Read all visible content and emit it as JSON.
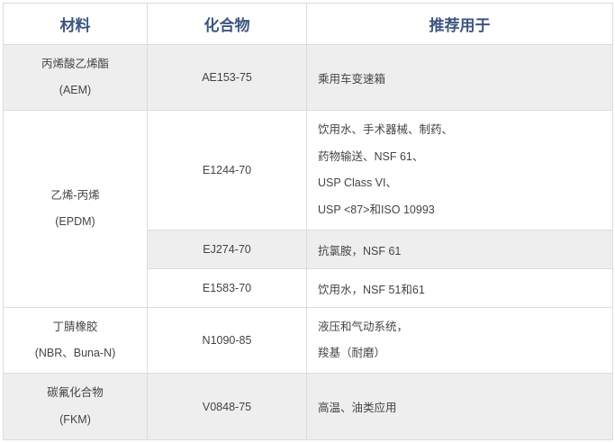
{
  "headers": [
    "材料",
    "化合物",
    "推荐用于"
  ],
  "rows": [
    {
      "material": [
        "丙烯酸乙烯酯",
        "(AEM)"
      ],
      "compound": "AE153-75",
      "use": [
        "乘用车变速箱"
      ]
    },
    {
      "material": [
        "乙烯-丙烯",
        "(EPDM)"
      ],
      "subrows": [
        {
          "compound": "E1244-70",
          "use": [
            "饮用水、手术器械、制药、",
            "药物输送、NSF 61、",
            "USP Class VI、",
            "USP <87>和ISO 10993"
          ]
        },
        {
          "compound": "EJ274-70",
          "use": [
            "抗氯胺，NSF 61"
          ]
        },
        {
          "compound": "E1583-70",
          "use": [
            "饮用水，NSF 51和61"
          ]
        }
      ]
    },
    {
      "material": [
        "丁腈橡胶",
        "(NBR、Buna-N)"
      ],
      "compound": "N1090-85",
      "use": [
        "液压和气动系统，",
        "羧基（耐磨）"
      ]
    },
    {
      "material": [
        "碳氟化合物",
        "(FKM)"
      ],
      "compound": "V0848-75",
      "use": [
        "高温、油类应用"
      ]
    }
  ]
}
